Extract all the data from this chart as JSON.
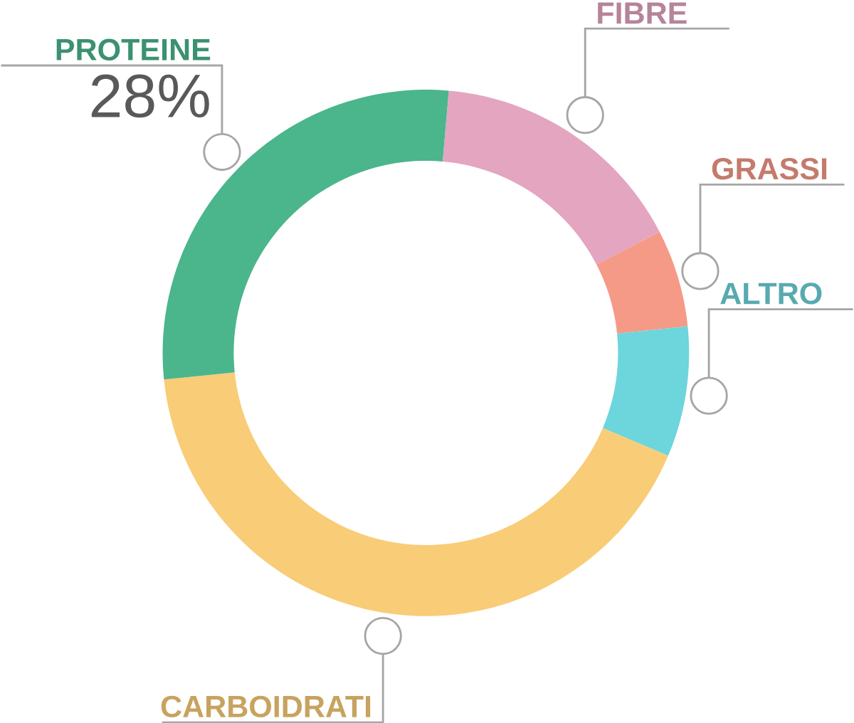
{
  "chart_data": {
    "type": "donut",
    "categories": [
      "FIBRE",
      "GRASSI",
      "ALTRO",
      "CARBOIDRATI",
      "PROTEINE"
    ],
    "values": [
      16,
      6,
      8,
      42,
      28
    ],
    "colors": [
      "#e3a5c0",
      "#f59a87",
      "#6dd5dc",
      "#f9cc77",
      "#4bb58c"
    ],
    "value_labels": [
      null,
      null,
      null,
      null,
      "28%"
    ]
  }
}
